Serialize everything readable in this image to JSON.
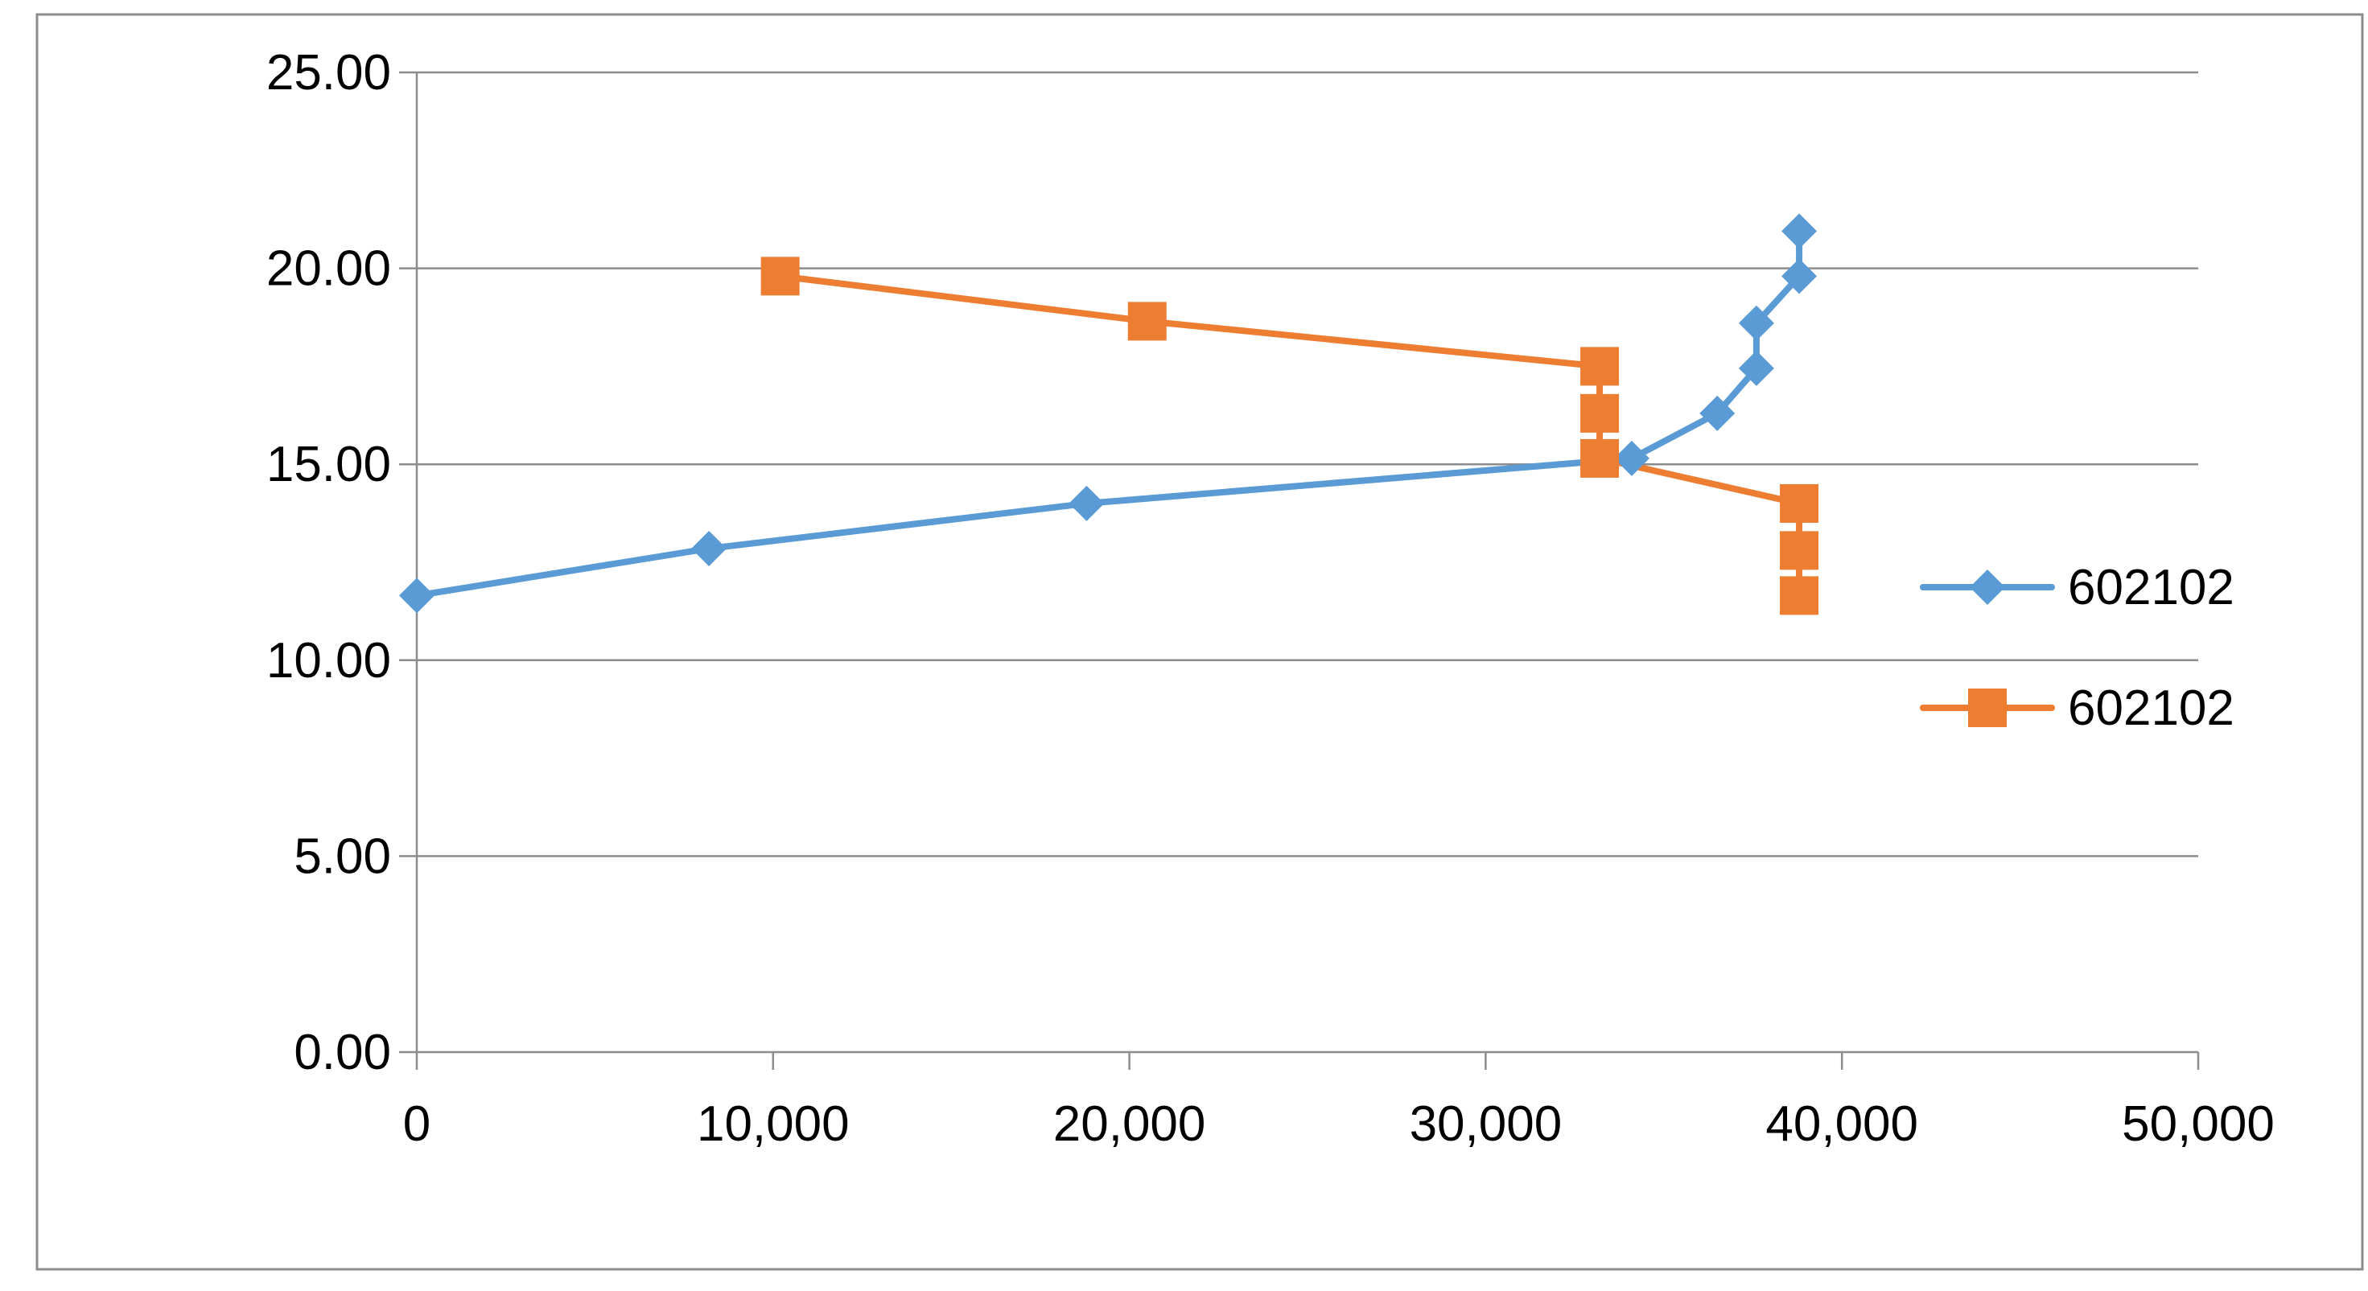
{
  "chart_data": {
    "type": "line",
    "title": "",
    "xlabel": "",
    "ylabel": "",
    "xlim": [
      0,
      50000
    ],
    "ylim": [
      0,
      25
    ],
    "x_ticks": [
      0,
      10000,
      20000,
      30000,
      40000,
      50000
    ],
    "x_tick_labels": [
      "0",
      "10,000",
      "20,000",
      "30,000",
      "40,000",
      "50,000"
    ],
    "y_ticks": [
      0,
      5,
      10,
      15,
      20,
      25
    ],
    "y_tick_labels": [
      "0.00",
      "5.00",
      "10.00",
      "15.00",
      "20.00",
      "25.00"
    ],
    "grid": "horizontal",
    "legend_position": "right",
    "series": [
      {
        "name": "602102",
        "color": "#5B9BD5",
        "marker": "diamond",
        "points": [
          [
            0,
            11.65
          ],
          [
            8200,
            12.85
          ],
          [
            18800,
            14.0
          ],
          [
            34100,
            15.15
          ],
          [
            36500,
            16.3
          ],
          [
            37600,
            17.45
          ],
          [
            37600,
            18.6
          ],
          [
            38800,
            19.8
          ],
          [
            38800,
            20.95
          ]
        ]
      },
      {
        "name": "602102",
        "color": "#ED7D31",
        "marker": "square",
        "points": [
          [
            10200,
            19.8
          ],
          [
            20500,
            18.65
          ],
          [
            33200,
            17.5
          ],
          [
            33200,
            16.3
          ],
          [
            33200,
            15.15
          ],
          [
            38800,
            14.0
          ],
          [
            38800,
            12.8
          ],
          [
            38800,
            11.65
          ]
        ]
      }
    ]
  }
}
